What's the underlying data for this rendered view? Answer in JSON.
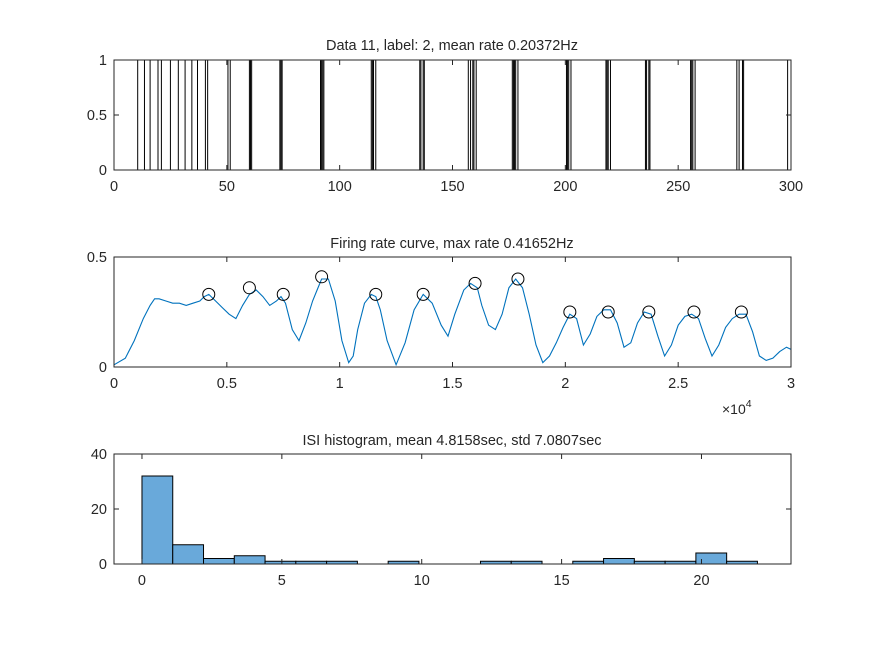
{
  "chart_data": [
    {
      "type": "raster",
      "title": "Data 11, label: 2, mean rate 0.20372Hz",
      "xlim": [
        0,
        300
      ],
      "ylim": [
        0,
        1
      ],
      "x_ticks": [
        "0",
        "50",
        "100",
        "150",
        "200",
        "250",
        "300"
      ],
      "y_ticks": [
        "0",
        "0.5",
        "1"
      ],
      "spike_times": [
        10.5,
        13.5,
        16,
        19.5,
        21,
        25,
        28.5,
        31.5,
        34.5,
        37,
        40.5,
        41.5,
        50.5,
        51.5,
        60,
        60.5,
        61,
        73.5,
        74,
        74.5,
        91.5,
        92,
        92.5,
        93,
        114,
        114.5,
        115,
        116,
        135.5,
        136,
        137,
        137.5,
        157,
        158,
        159,
        159.5,
        160.5,
        176.5,
        177,
        177.5,
        178,
        179,
        200.5,
        201,
        201.5,
        202.5,
        218,
        218.5,
        219,
        220,
        235.5,
        236,
        237,
        237.5,
        255.5,
        256,
        256.5,
        257.5,
        276,
        277,
        278.5,
        279,
        298.5
      ],
      "grid": false,
      "box": true
    },
    {
      "type": "line",
      "title": "Firing rate curve, max rate 0.41652Hz",
      "xlim": [
        0,
        30000
      ],
      "ylim": [
        0,
        0.5
      ],
      "x_ticks": [
        "0",
        "0.5",
        "1",
        "1.5",
        "2",
        "2.5",
        "3"
      ],
      "x_exponent_label": "×10",
      "x_exponent_power": "4",
      "y_ticks": [
        "0",
        "0.5"
      ],
      "line_color": "#0072BD",
      "series": [
        {
          "x": [
            0,
            500,
            900,
            1300,
            1600,
            1800,
            2000,
            2300,
            2600,
            2900,
            3200,
            3500,
            3800,
            4000,
            4200,
            4500,
            4800,
            5100,
            5400,
            5700,
            6000,
            6300,
            6600,
            6900,
            7200,
            7400,
            7600,
            7900,
            8200,
            8500,
            8800,
            9000,
            9200,
            9500,
            9800,
            10100,
            10400,
            10600,
            10800,
            11100,
            11400,
            11600,
            11800,
            12100,
            12500,
            12900,
            13300,
            13700,
            14100,
            14500,
            14800,
            15100,
            15500,
            15800,
            16100,
            16300,
            16600,
            16900,
            17200,
            17500,
            17800,
            18100,
            18400,
            18700,
            19000,
            19300,
            19600,
            19900,
            20200,
            20500,
            20800,
            21100,
            21400,
            21700,
            22000,
            22300,
            22600,
            22900,
            23200,
            23500,
            23800,
            24100,
            24400,
            24700,
            25000,
            25300,
            25600,
            25900,
            26200,
            26500,
            26800,
            27100,
            27400,
            27700,
            28000,
            28300,
            28600,
            28900,
            29200,
            29500,
            29800,
            30000
          ],
          "y": [
            0.01,
            0.04,
            0.12,
            0.22,
            0.28,
            0.31,
            0.31,
            0.3,
            0.29,
            0.29,
            0.28,
            0.29,
            0.3,
            0.32,
            0.33,
            0.3,
            0.27,
            0.24,
            0.22,
            0.28,
            0.33,
            0.35,
            0.32,
            0.28,
            0.3,
            0.32,
            0.29,
            0.17,
            0.12,
            0.2,
            0.3,
            0.35,
            0.4,
            0.4,
            0.3,
            0.12,
            0.02,
            0.05,
            0.17,
            0.29,
            0.33,
            0.32,
            0.26,
            0.12,
            0.01,
            0.11,
            0.26,
            0.33,
            0.29,
            0.19,
            0.14,
            0.24,
            0.35,
            0.38,
            0.36,
            0.28,
            0.19,
            0.17,
            0.24,
            0.36,
            0.4,
            0.36,
            0.24,
            0.1,
            0.02,
            0.05,
            0.11,
            0.18,
            0.24,
            0.22,
            0.1,
            0.15,
            0.23,
            0.26,
            0.26,
            0.2,
            0.09,
            0.11,
            0.2,
            0.25,
            0.24,
            0.14,
            0.05,
            0.1,
            0.19,
            0.23,
            0.24,
            0.22,
            0.13,
            0.05,
            0.1,
            0.18,
            0.22,
            0.24,
            0.24,
            0.16,
            0.05,
            0.03,
            0.04,
            0.07,
            0.09,
            0.08
          ]
        }
      ],
      "peaks": {
        "x": [
          4200,
          6000,
          7500,
          9200,
          11600,
          13700,
          16000,
          17900,
          20200,
          21900,
          23700,
          25700,
          27800
        ],
        "y": [
          0.33,
          0.36,
          0.33,
          0.41,
          0.33,
          0.33,
          0.38,
          0.4,
          0.25,
          0.25,
          0.25,
          0.25,
          0.25
        ]
      },
      "grid": false,
      "box": true
    },
    {
      "type": "histogram",
      "title": "ISI histogram, mean 4.8158sec, std 7.0807sec",
      "xlim": [
        -1,
        23.2
      ],
      "ylim": [
        0,
        40
      ],
      "x_ticks": [
        "0",
        "5",
        "10",
        "15",
        "20"
      ],
      "y_ticks": [
        "0",
        "20",
        "40"
      ],
      "bar_color": "#69A9DA",
      "bin_width": 1.1,
      "bin_start": 0,
      "counts": [
        32,
        7,
        2,
        3,
        1,
        1,
        1,
        0,
        1,
        0,
        0,
        1,
        1,
        0,
        1,
        2,
        1,
        1,
        4,
        1
      ],
      "grid": false,
      "box": true
    }
  ]
}
